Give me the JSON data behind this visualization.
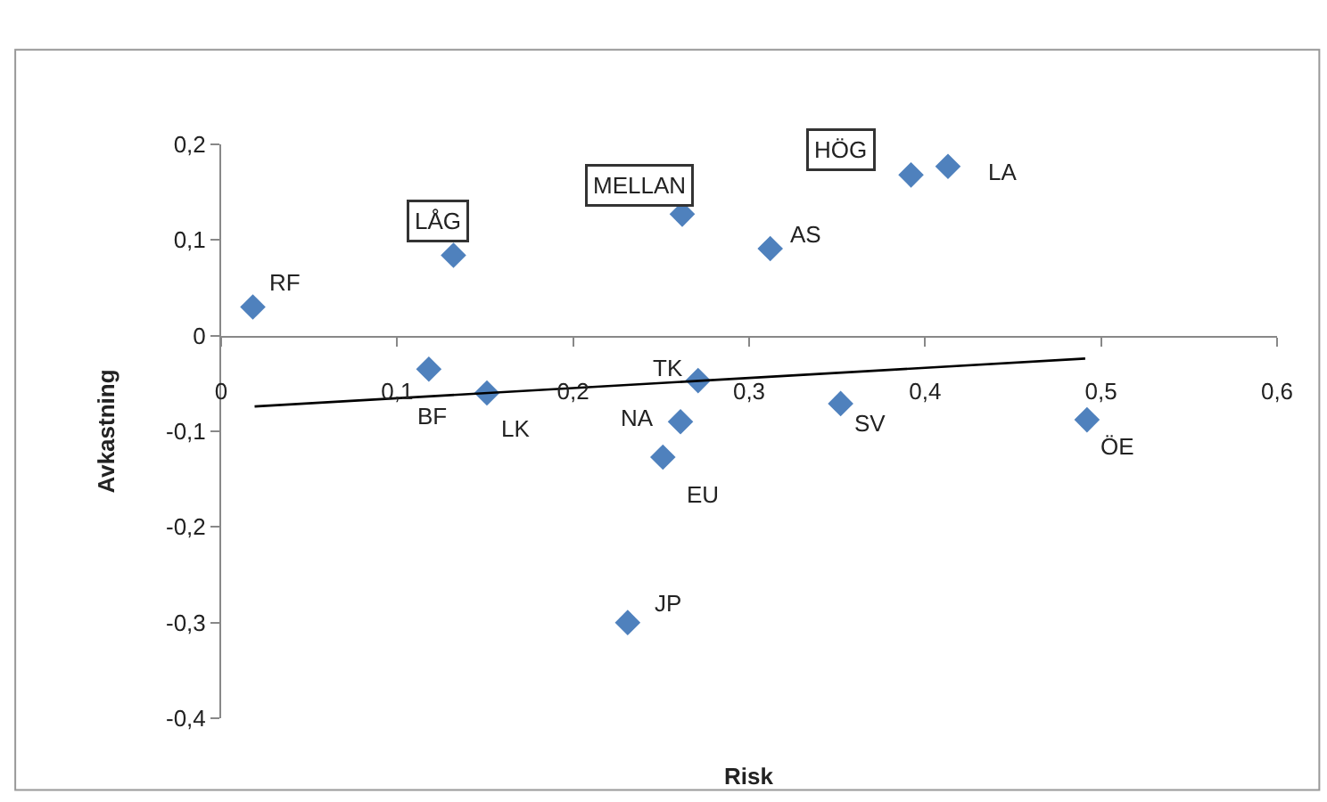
{
  "chart_data": {
    "type": "scatter",
    "xlabel": "Risk",
    "ylabel": "Avkastning",
    "series": [
      {
        "color": "#4f81bd",
        "marker": "diamond",
        "x": [
          0.018,
          0.132,
          0.262,
          0.312,
          0.392,
          0.413,
          0.118,
          0.151,
          0.271,
          0.261,
          0.251,
          0.352,
          0.492,
          0.231
        ],
        "values": [
          0.03,
          0.084,
          0.127,
          0.091,
          0.168,
          0.177,
          -0.035,
          -0.06,
          -0.047,
          -0.09,
          -0.127,
          -0.071,
          -0.088,
          -0.3
        ]
      },
      {
        "type": "line",
        "color": "#000000",
        "x": [
          0.019,
          0.491
        ],
        "values": [
          -0.074,
          -0.024
        ]
      }
    ],
    "annotations": [
      {
        "text": "RF",
        "x": 0.018,
        "y": 0.03
      },
      {
        "text": "LÅG",
        "x": 0.132,
        "y": 0.084
      },
      {
        "text": "MELLAN",
        "x": 0.262,
        "y": 0.127
      },
      {
        "text": "AS",
        "x": 0.312,
        "y": 0.091
      },
      {
        "text": "HÖG",
        "x": 0.392,
        "y": 0.168
      },
      {
        "text": "LA",
        "x": 0.413,
        "y": 0.177
      },
      {
        "text": "BF",
        "x": 0.118,
        "y": -0.035
      },
      {
        "text": "LK",
        "x": 0.151,
        "y": -0.06
      },
      {
        "text": "TK",
        "x": 0.271,
        "y": -0.047
      },
      {
        "text": "NA",
        "x": 0.261,
        "y": -0.09
      },
      {
        "text": "EU",
        "x": 0.251,
        "y": -0.127
      },
      {
        "text": "SV",
        "x": 0.352,
        "y": -0.071
      },
      {
        "text": "ÖE",
        "x": 0.492,
        "y": -0.088
      },
      {
        "text": "JP",
        "x": 0.231,
        "y": -0.3
      }
    ],
    "xlim": [
      0,
      0.6
    ],
    "xticks": [
      0,
      {
        "value": 0.1,
        "label": "0,1"
      },
      {
        "value": 0.2,
        "label": "0,2"
      },
      {
        "value": 0.3,
        "label": "0,3"
      },
      {
        "value": 0.4,
        "label": "0,4"
      },
      {
        "value": 0.5,
        "label": "0,5"
      },
      {
        "value": 0.6,
        "label": "0,6"
      }
    ],
    "ylim": [
      -0.4,
      0.2
    ],
    "yticks": [
      {
        "value": -0.4,
        "label": "-0,4"
      },
      {
        "value": -0.3,
        "label": "-0,3"
      },
      {
        "value": -0.2,
        "label": "-0,2"
      },
      {
        "value": -0.1,
        "label": "-0,1"
      },
      0,
      {
        "value": 0.1,
        "label": "0,1"
      },
      {
        "value": 0.2,
        "label": "0,2"
      }
    ],
    "grid": false
  }
}
